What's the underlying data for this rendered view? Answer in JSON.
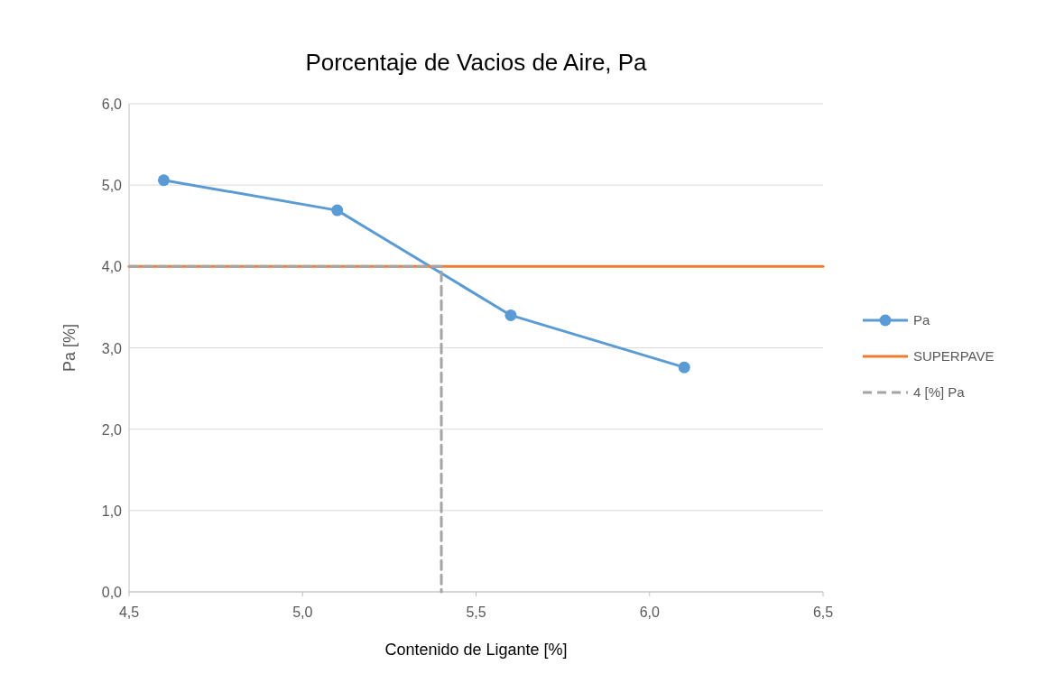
{
  "chart_data": {
    "type": "line",
    "title": "Porcentaje de Vacios de Aire, Pa",
    "xlabel": "Contenido de Ligante [%]",
    "ylabel": "Pa [%]",
    "xlim": [
      4.5,
      6.5
    ],
    "ylim": [
      0,
      6
    ],
    "xticks": [
      {
        "value": 4.5,
        "label": "4,5"
      },
      {
        "value": 5,
        "label": "5,0"
      },
      {
        "value": 5.5,
        "label": "5,5"
      },
      {
        "value": 6,
        "label": "6,0"
      },
      {
        "value": 6.5,
        "label": "6,5"
      }
    ],
    "yticks": [
      {
        "value": 0,
        "label": "0,0"
      },
      {
        "value": 1,
        "label": "1,0"
      },
      {
        "value": 2,
        "label": "2,0"
      },
      {
        "value": 3,
        "label": "3,0"
      },
      {
        "value": 4,
        "label": "4,0"
      },
      {
        "value": 5,
        "label": "5,0"
      },
      {
        "value": 6,
        "label": "6,0"
      }
    ],
    "grid": "y",
    "legend": "right",
    "series": [
      {
        "name": "Pa",
        "color": "#5b9bd5",
        "x": [
          4.6,
          5.1,
          5.6,
          6.1
        ],
        "values": [
          5.06,
          4.69,
          3.4,
          2.76
        ],
        "marker": "circle",
        "line_style": "solid"
      },
      {
        "name": "SUPERPAVE",
        "color": "#ed7d31",
        "x": [
          4.5,
          6.5
        ],
        "values": [
          4,
          4
        ],
        "marker": "none",
        "line_style": "solid"
      },
      {
        "name": "4 [%] Pa",
        "color": "#a5a5a5",
        "x": [
          4.5,
          5.4,
          5.4
        ],
        "values": [
          4,
          4,
          0
        ],
        "marker": "none",
        "line_style": "dashed"
      }
    ]
  }
}
